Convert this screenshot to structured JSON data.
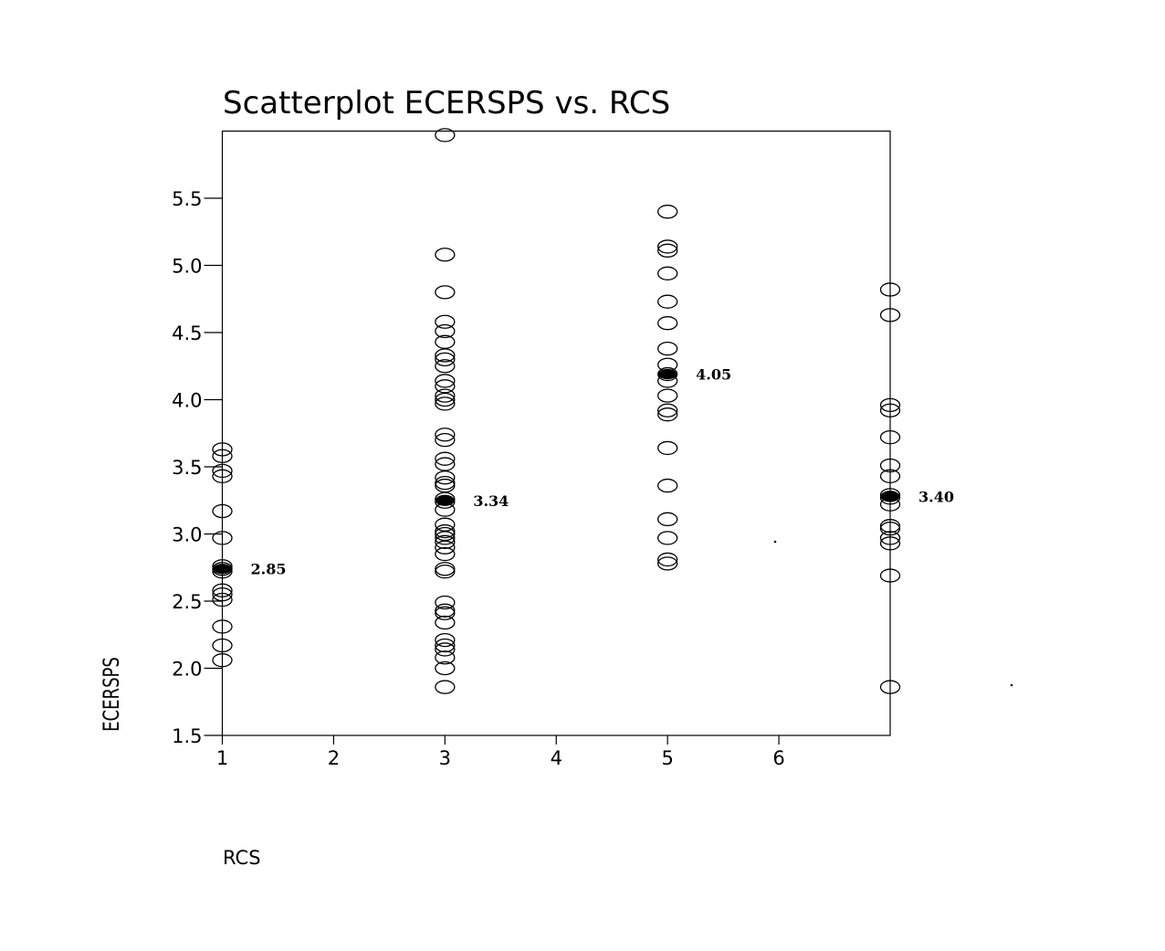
{
  "chart_data": {
    "type": "scatter",
    "title": "Scatterplot ECERSPS vs. RCS",
    "xlabel": "RCS",
    "ylabel": "ECERSPS",
    "xlim": [
      1,
      7
    ],
    "ylim": [
      1.5,
      6.0
    ],
    "x_ticks": [
      "1",
      "2",
      "3",
      "4",
      "5",
      "6"
    ],
    "y_ticks": [
      "1.5",
      "2.0",
      "2.5",
      "3.0",
      "3.5",
      "4.0",
      "4.5",
      "5.0",
      "5.5"
    ],
    "grid": false,
    "series": [
      {
        "points": [
          [
            1,
            3.63
          ],
          [
            1,
            3.58
          ],
          [
            1,
            3.47
          ],
          [
            1,
            3.43
          ],
          [
            1,
            3.17
          ],
          [
            1,
            2.97
          ],
          [
            1,
            2.76
          ],
          [
            1,
            2.74
          ],
          [
            1,
            2.72
          ],
          [
            1,
            2.58
          ],
          [
            1,
            2.55
          ],
          [
            1,
            2.51
          ],
          [
            1,
            2.31
          ],
          [
            1,
            2.17
          ],
          [
            1,
            2.06
          ],
          [
            3,
            5.97
          ],
          [
            3,
            5.08
          ],
          [
            3,
            4.8
          ],
          [
            3,
            4.58
          ],
          [
            3,
            4.51
          ],
          [
            3,
            4.43
          ],
          [
            3,
            4.33
          ],
          [
            3,
            4.3
          ],
          [
            3,
            4.25
          ],
          [
            3,
            4.14
          ],
          [
            3,
            4.1
          ],
          [
            3,
            4.03
          ],
          [
            3,
            4.0
          ],
          [
            3,
            3.97
          ],
          [
            3,
            3.74
          ],
          [
            3,
            3.7
          ],
          [
            3,
            3.56
          ],
          [
            3,
            3.52
          ],
          [
            3,
            3.42
          ],
          [
            3,
            3.38
          ],
          [
            3,
            3.36
          ],
          [
            3,
            3.26
          ],
          [
            3,
            3.24
          ],
          [
            3,
            3.18
          ],
          [
            3,
            3.07
          ],
          [
            3,
            3.02
          ],
          [
            3,
            3.0
          ],
          [
            3,
            2.97
          ],
          [
            3,
            2.94
          ],
          [
            3,
            2.9
          ],
          [
            3,
            2.85
          ],
          [
            3,
            2.74
          ],
          [
            3,
            2.72
          ],
          [
            3,
            2.49
          ],
          [
            3,
            2.43
          ],
          [
            3,
            2.41
          ],
          [
            3,
            2.34
          ],
          [
            3,
            2.21
          ],
          [
            3,
            2.17
          ],
          [
            3,
            2.14
          ],
          [
            3,
            2.08
          ],
          [
            3,
            2.0
          ],
          [
            3,
            1.86
          ],
          [
            5,
            5.4
          ],
          [
            5,
            5.14
          ],
          [
            5,
            5.11
          ],
          [
            5,
            4.94
          ],
          [
            5,
            4.73
          ],
          [
            5,
            4.57
          ],
          [
            5,
            4.38
          ],
          [
            5,
            4.26
          ],
          [
            5,
            4.19
          ],
          [
            5,
            4.14
          ],
          [
            5,
            4.03
          ],
          [
            5,
            3.92
          ],
          [
            5,
            3.89
          ],
          [
            5,
            3.64
          ],
          [
            5,
            3.36
          ],
          [
            5,
            3.11
          ],
          [
            5,
            2.97
          ],
          [
            5,
            2.81
          ],
          [
            5,
            2.78
          ],
          [
            7,
            4.82
          ],
          [
            7,
            4.63
          ],
          [
            7,
            3.96
          ],
          [
            7,
            3.92
          ],
          [
            7,
            3.72
          ],
          [
            7,
            3.51
          ],
          [
            7,
            3.43
          ],
          [
            7,
            3.29
          ],
          [
            7,
            3.27
          ],
          [
            7,
            3.22
          ],
          [
            7,
            3.06
          ],
          [
            7,
            3.04
          ],
          [
            7,
            2.97
          ],
          [
            7,
            2.93
          ],
          [
            7,
            2.69
          ],
          [
            7,
            1.86
          ]
        ]
      }
    ],
    "means": [
      {
        "x": 1,
        "y": 2.74,
        "label": "2.85"
      },
      {
        "x": 3,
        "y": 3.25,
        "label": "3.34"
      },
      {
        "x": 5,
        "y": 4.19,
        "label": "4.05"
      },
      {
        "x": 7,
        "y": 3.28,
        "label": "3.40"
      }
    ]
  }
}
